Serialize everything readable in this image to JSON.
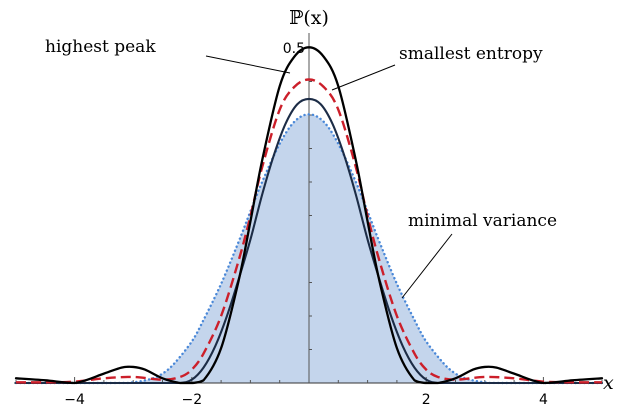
{
  "chart_data": {
    "type": "line",
    "title": "",
    "xlabel": "x",
    "ylabel": "ℙ(x)",
    "xlim": [
      -5,
      5
    ],
    "ylim": [
      0,
      0.5
    ],
    "x_ticks": [
      -4,
      -2,
      2,
      4
    ],
    "x_tick_labels": [
      "−4",
      "−2",
      "2",
      "4"
    ],
    "y_ticks": [
      0.5
    ],
    "y_tick_labels": [
      "0.5"
    ],
    "grid": false,
    "annotations": [
      "highest peak",
      "smallest entropy",
      "minimal variance"
    ],
    "series": [
      {
        "color": "#000000",
        "style": "solid",
        "fill": false,
        "x": [
          -5,
          -4.5,
          -4,
          -3.5,
          -3.2,
          -3,
          -2.8,
          -2.5,
          -2.2,
          -2,
          -1.8,
          -1.5,
          -1.2,
          -1,
          -0.8,
          -0.5,
          -0.25,
          0,
          0.25,
          0.5,
          0.8,
          1,
          1.2,
          1.5,
          1.8,
          2,
          2.2,
          2.5,
          2.8,
          3,
          3.2,
          3.5,
          4,
          4.5,
          5
        ],
        "y": [
          0.007,
          0.004,
          0,
          0.014,
          0.023,
          0.024,
          0.02,
          0.007,
          0,
          0,
          0.004,
          0.052,
          0.153,
          0.241,
          0.332,
          0.443,
          0.487,
          0.501,
          0.487,
          0.443,
          0.332,
          0.241,
          0.153,
          0.052,
          0.004,
          0,
          0,
          0.007,
          0.02,
          0.024,
          0.023,
          0.014,
          0,
          0.004,
          0.007
        ]
      },
      {
        "color": "#cc1f2a",
        "style": "dashed",
        "fill": false,
        "x": [
          -5,
          -4.5,
          -4,
          -3.5,
          -3,
          -2.5,
          -2.2,
          -2,
          -1.8,
          -1.5,
          -1.2,
          -1,
          -0.8,
          -0.5,
          -0.25,
          0,
          0.25,
          0.5,
          0.8,
          1,
          1.2,
          1.5,
          1.8,
          2,
          2.2,
          2.5,
          3,
          3.5,
          4,
          4.5,
          5
        ],
        "y": [
          0.001,
          0.001,
          0.002,
          0.007,
          0.009,
          0.005,
          0.009,
          0.02,
          0.044,
          0.1,
          0.183,
          0.249,
          0.322,
          0.408,
          0.442,
          0.453,
          0.442,
          0.408,
          0.322,
          0.249,
          0.183,
          0.1,
          0.044,
          0.02,
          0.009,
          0.005,
          0.009,
          0.007,
          0.002,
          0.001,
          0.001
        ]
      },
      {
        "color": "#4a88d8",
        "style": "dotted",
        "fill": true,
        "fill_color": "#c4d5ec",
        "x": [
          -5,
          -3.3,
          -3,
          -2.7,
          -2.5,
          -2.3,
          -2,
          -1.8,
          -1.5,
          -1.2,
          -1,
          -0.8,
          -0.5,
          -0.25,
          0,
          0.25,
          0.5,
          0.8,
          1,
          1.2,
          1.5,
          1.8,
          2,
          2.3,
          2.5,
          2.7,
          3,
          3.3,
          5
        ],
        "y": [
          0,
          0,
          0.001,
          0.006,
          0.014,
          0.029,
          0.062,
          0.094,
          0.148,
          0.211,
          0.256,
          0.3,
          0.357,
          0.39,
          0.401,
          0.39,
          0.357,
          0.3,
          0.256,
          0.211,
          0.148,
          0.094,
          0.062,
          0.029,
          0.014,
          0.006,
          0.001,
          0,
          0
        ]
      },
      {
        "color": "#1c2c46",
        "style": "solid",
        "fill": false,
        "x": [
          -5,
          -2.5,
          -2.2,
          -2,
          -1.8,
          -1.6,
          -1.4,
          -1.2,
          -1,
          -0.8,
          -0.6,
          -0.4,
          -0.2,
          0,
          0.2,
          0.4,
          0.6,
          0.8,
          1,
          1.2,
          1.4,
          1.6,
          1.8,
          2,
          2.2,
          2.5,
          5
        ],
        "y": [
          0,
          0,
          0,
          0.005,
          0.023,
          0.055,
          0.1,
          0.155,
          0.214,
          0.281,
          0.34,
          0.387,
          0.416,
          0.424,
          0.416,
          0.387,
          0.34,
          0.281,
          0.214,
          0.155,
          0.1,
          0.055,
          0.023,
          0.005,
          0,
          0,
          0
        ]
      }
    ]
  }
}
